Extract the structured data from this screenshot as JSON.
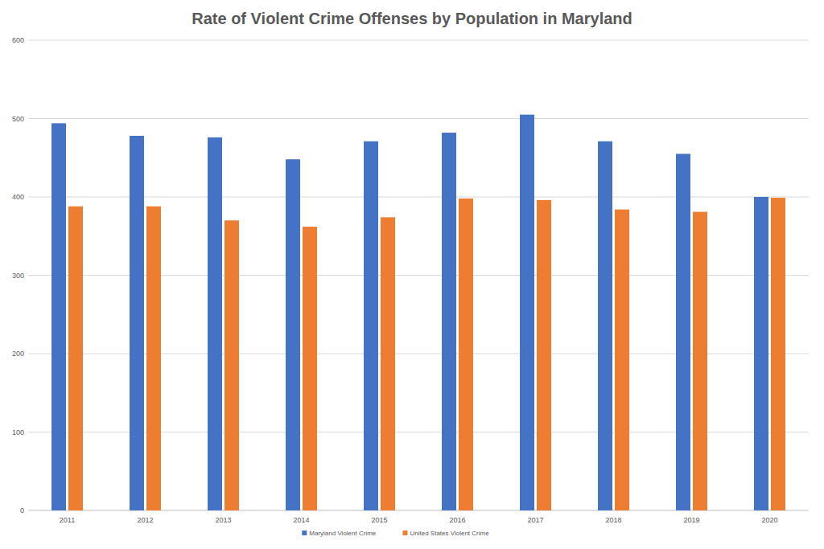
{
  "chart_data": {
    "type": "bar",
    "title": "Rate of Violent Crime Offenses by Population in Maryland",
    "categories": [
      "2011",
      "2012",
      "2013",
      "2014",
      "2015",
      "2016",
      "2017",
      "2018",
      "2019",
      "2020"
    ],
    "series": [
      {
        "name": "Maryland Violent Crime",
        "color": "#4472c4",
        "values": [
          494,
          478,
          476,
          448,
          471,
          482,
          505,
          471,
          455,
          400
        ]
      },
      {
        "name": "United States Violent Crime",
        "color": "#ed7d31",
        "values": [
          388,
          388,
          370,
          362,
          374,
          398,
          396,
          384,
          381,
          399
        ]
      }
    ],
    "ylim": [
      0,
      600
    ],
    "yticks": [
      0,
      100,
      200,
      300,
      400,
      500,
      600
    ],
    "grid": true,
    "legend": "bottom"
  }
}
